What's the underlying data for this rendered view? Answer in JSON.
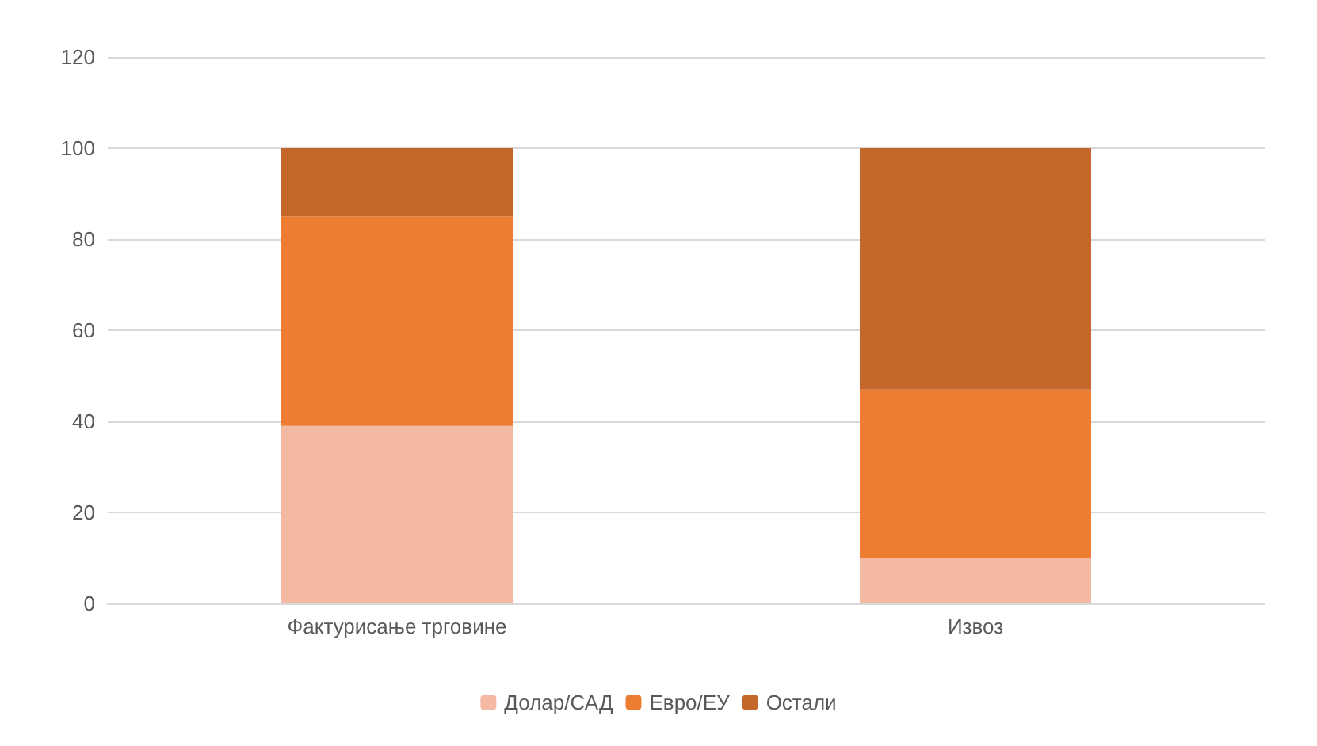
{
  "chart_data": {
    "type": "bar",
    "stacked": true,
    "categories": [
      "Фактурисање трговине",
      "Извоз"
    ],
    "series": [
      {
        "name": "Долар/САД",
        "color": "#f4b9a3",
        "values": [
          39,
          10
        ]
      },
      {
        "name": "Евро/ЕУ",
        "color": "#ed7d31",
        "values": [
          46,
          37
        ]
      },
      {
        "name": "Остали",
        "color": "#c5672a",
        "values": [
          15,
          53
        ]
      }
    ],
    "ylim": [
      0,
      120
    ],
    "yticks": [
      0,
      20,
      40,
      60,
      80,
      100,
      120
    ],
    "grid": "y",
    "legend": "bottom"
  }
}
